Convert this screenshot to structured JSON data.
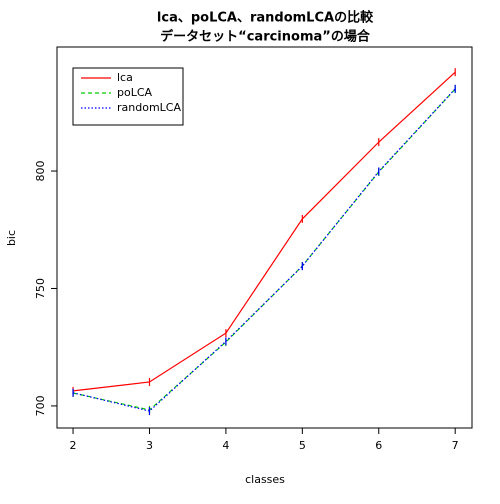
{
  "chart_data": {
    "type": "line",
    "title": "lca、poLCA、randomLCAの比較",
    "subtitle": "データセット“carcinoma”の場合",
    "x_label": "classes",
    "y_label": "bic",
    "x": [
      2,
      3,
      4,
      5,
      6,
      7
    ],
    "series": [
      {
        "name": "lca",
        "color": "#ff0000",
        "dash": "solid",
        "values": [
          706.4,
          710.2,
          731,
          779.6,
          812.3,
          842.1
        ]
      },
      {
        "name": "poLCA",
        "color": "#00cc00",
        "dash": "dashed",
        "values": [
          705.5,
          698.3,
          727.2,
          759.6,
          799.6,
          834.9
        ]
      },
      {
        "name": "randomLCA",
        "color": "#0000ff",
        "dash": "dotted",
        "values": [
          705.6,
          697.8,
          727.5,
          759.5,
          799.8,
          835.0
        ]
      }
    ],
    "xlim": [
      1.79,
      7.22
    ],
    "ylim": [
      690.6,
      852.8
    ],
    "xticks": [
      2,
      3,
      4,
      5,
      6,
      7
    ],
    "yticks": [
      700,
      750,
      800
    ],
    "legend": "top-left"
  }
}
